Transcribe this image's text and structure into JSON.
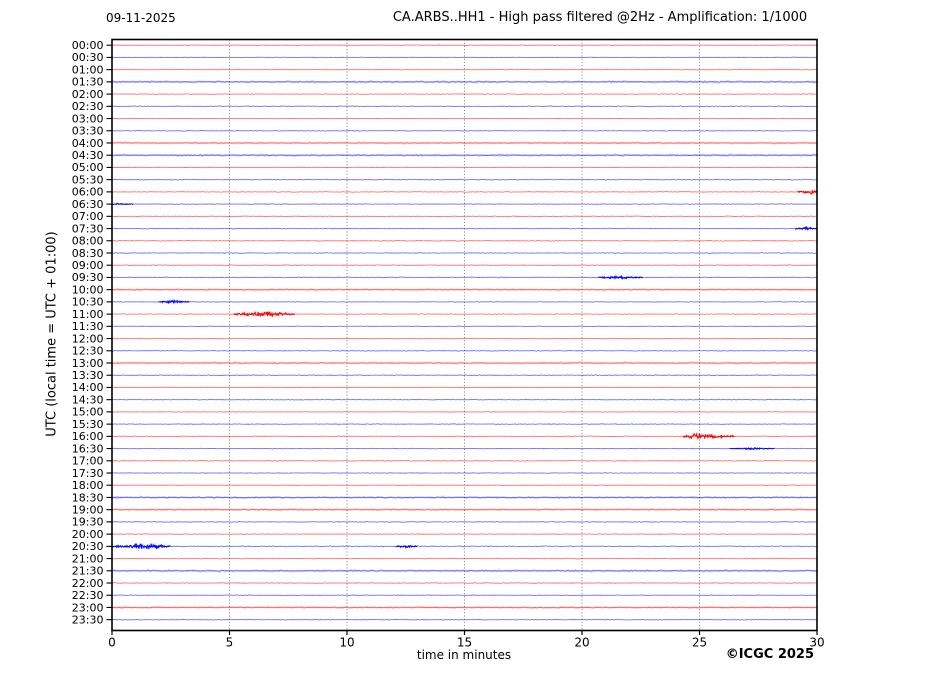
{
  "chart_data": {
    "type": "line",
    "subtype": "helicorder-seismogram",
    "title": "CA.ARBS..HH1 - High pass filtered @2Hz - Amplification: 1/1000",
    "date_label": "09-11-2025",
    "xlabel": "time in minutes",
    "ylabel": "UTC (local time = UTC + 01:00)",
    "copyright": "©ICGC 2025",
    "xlim": [
      0,
      30
    ],
    "x_ticks": [
      0,
      5,
      10,
      15,
      20,
      25,
      30
    ],
    "minutes_per_row": 30,
    "grid": "vertical dotted gridlines every 5 minutes",
    "legend": "none",
    "row_labels": [
      "00:00",
      "00:30",
      "01:00",
      "01:30",
      "02:00",
      "02:30",
      "03:00",
      "03:30",
      "04:00",
      "04:30",
      "05:00",
      "05:30",
      "06:00",
      "06:30",
      "07:00",
      "07:30",
      "08:00",
      "08:30",
      "09:00",
      "09:30",
      "10:00",
      "10:30",
      "11:00",
      "11:30",
      "12:00",
      "12:30",
      "13:00",
      "13:30",
      "14:00",
      "14:30",
      "15:00",
      "15:30",
      "16:00",
      "16:30",
      "17:00",
      "17:30",
      "18:00",
      "18:30",
      "19:00",
      "19:30",
      "20:00",
      "20:30",
      "21:00",
      "21:30",
      "22:00",
      "22:30",
      "23:00",
      "23:30"
    ],
    "row_color_rule": "full-hour rows red, half-hour rows blue",
    "colors": {
      "hour_trace": "#ff0000",
      "half_hour_trace": "#0000ff",
      "grid": "#6b6b6b",
      "frame": "#000000",
      "text": "#000000",
      "background": "#ffffff"
    },
    "noisy_rows": [
      "01:30",
      "04:00",
      "04:30",
      "10:00",
      "13:00",
      "18:30",
      "19:00",
      "21:30",
      "23:00"
    ],
    "events": [
      {
        "row": "06:00",
        "start_min": 29.2,
        "peak_min": 29.72,
        "end_min": 30.0,
        "size": "medium"
      },
      {
        "row": "06:30",
        "start_min": 0.0,
        "peak_min": 0.3,
        "end_min": 0.9,
        "size": "tiny"
      },
      {
        "row": "07:30",
        "start_min": 29.1,
        "peak_min": 29.6,
        "end_min": 30.0,
        "size": "small"
      },
      {
        "row": "09:30",
        "start_min": 20.7,
        "peak_min": 21.3,
        "end_min": 22.6,
        "size": "small"
      },
      {
        "row": "10:30",
        "start_min": 2.0,
        "peak_min": 2.6,
        "end_min": 3.3,
        "size": "small"
      },
      {
        "row": "11:00",
        "start_min": 5.2,
        "peak_min": 6.45,
        "end_min": 7.8,
        "size": "large"
      },
      {
        "row": "16:00",
        "start_min": 24.3,
        "peak_min": 24.85,
        "end_min": 26.5,
        "size": "large"
      },
      {
        "row": "16:30",
        "start_min": 26.3,
        "peak_min": 27.3,
        "end_min": 28.2,
        "size": "tiny"
      },
      {
        "row": "20:30",
        "start_min": 0.0,
        "peak_min": 1.5,
        "end_min": 2.5,
        "size": "large"
      },
      {
        "row": "20:30",
        "start_min": 12.1,
        "peak_min": 12.5,
        "end_min": 13.0,
        "size": "small"
      }
    ]
  }
}
